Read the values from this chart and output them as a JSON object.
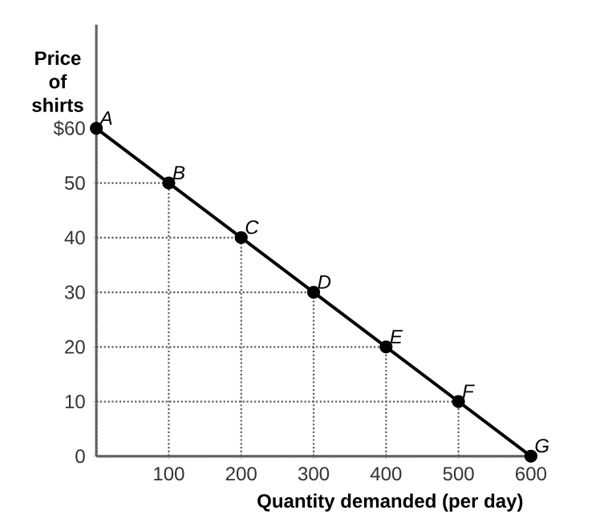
{
  "chart_data": {
    "type": "line",
    "xlabel": "Quantity demanded (per day)",
    "ylabel": "Price of shirts",
    "x": [
      0,
      100,
      200,
      300,
      400,
      500,
      600
    ],
    "series": [
      {
        "color": "#000000",
        "values": [
          60,
          50,
          40,
          30,
          20,
          10,
          0
        ]
      }
    ],
    "xlim": [
      0,
      600
    ],
    "ylim": [
      0,
      79
    ],
    "xticks": [
      100,
      200,
      300,
      400,
      500,
      600
    ],
    "yticks": [
      0,
      10,
      20,
      30,
      40,
      50,
      {
        "value": 60,
        "label": "$60"
      }
    ],
    "marker": "circle",
    "line_style": "solid",
    "grid": true,
    "annotations": [
      {
        "text": "A",
        "x": 0,
        "y": 60
      },
      {
        "text": "B",
        "x": 100,
        "y": 50
      },
      {
        "text": "C",
        "x": 200,
        "y": 40
      },
      {
        "text": "D",
        "x": 300,
        "y": 30
      },
      {
        "text": "E",
        "x": 400,
        "y": 20
      },
      {
        "text": "F",
        "x": 500,
        "y": 10
      },
      {
        "text": "G",
        "x": 600,
        "y": 0
      }
    ]
  }
}
